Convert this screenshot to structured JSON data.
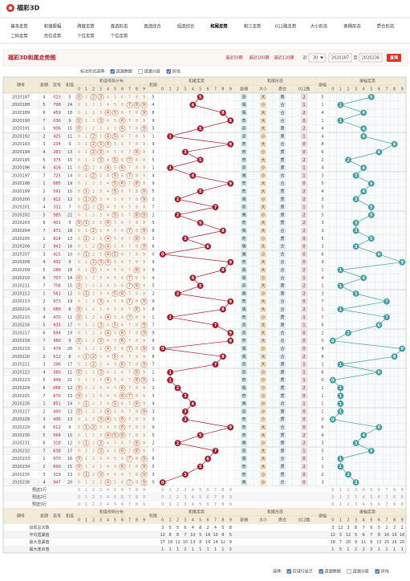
{
  "logo": "福彩3D",
  "nav": {
    "active": 6,
    "row1": [
      "基本走势",
      "和值振幅",
      "跨度走势",
      "直选形态",
      "直选综合",
      "组选综合",
      "和尾走势",
      "和三走势",
      "012路走势",
      "大小形态",
      "奇偶形态",
      "质合形态"
    ],
    "row2": [
      "二码走势",
      "百位走势",
      "十位走势",
      "个位走势"
    ]
  },
  "title_bar": {
    "title": "福彩3D和尾走势图",
    "recent": [
      "最近50期",
      "最近100期",
      "最近120期"
    ],
    "near": "近",
    "select": "30",
    "from": "2020187",
    "to_label": "至",
    "to": "2020236",
    "query": "查询"
  },
  "toolbar": {
    "label": "标注形式选择:",
    "options": [
      {
        "label": "遗漏数据",
        "checked": true
      },
      {
        "label": "遗漏分层",
        "checked": false
      },
      {
        "label": "折线",
        "checked": true
      }
    ]
  },
  "table": {
    "headers": {
      "issue": "期号",
      "week": "星期",
      "draw": "奖号",
      "sum": "和值",
      "dist": "和值号码分布",
      "tail": "和尾",
      "tail_trend": "和尾走势",
      "form": "和尾形态",
      "oe": "奇偶",
      "bs": "大小",
      "pc": "质合",
      "r": "012路",
      "amp": "振幅",
      "amp_trend": "振幅走势"
    },
    "digits": [
      0,
      1,
      2,
      3,
      4,
      5,
      6,
      7,
      8,
      9
    ],
    "rows": [
      [
        "2020187",
        4,
        "023",
        5,
        5,
        "奇",
        "大",
        "质",
        2,
        5
      ],
      [
        "2020188",
        5,
        "798",
        24,
        4,
        "偶",
        "小",
        "合",
        1,
        1
      ],
      [
        "2020189",
        6,
        "459",
        18,
        8,
        "偶",
        "大",
        "合",
        2,
        4
      ],
      [
        "2020190",
        7,
        "036",
        9,
        9,
        "奇",
        "大",
        "合",
        0,
        1
      ],
      [
        "2020191",
        1,
        "906",
        15,
        5,
        "奇",
        "大",
        "质",
        2,
        4
      ],
      [
        "2020192",
        2,
        "425",
        11,
        1,
        "奇",
        "小",
        "质",
        1,
        4
      ],
      [
        "2020193",
        3,
        "234",
        9,
        9,
        "奇",
        "大",
        "合",
        0,
        8
      ],
      [
        "2020194",
        4,
        "283",
        13,
        3,
        "奇",
        "小",
        "质",
        0,
        6
      ],
      [
        "2020195",
        5,
        "375",
        15,
        5,
        "奇",
        "大",
        "质",
        2,
        2
      ],
      [
        "2020196",
        6,
        "416",
        11,
        1,
        "奇",
        "小",
        "质",
        1,
        4
      ],
      [
        "2020197",
        7,
        "725",
        14,
        4,
        "偶",
        "小",
        "合",
        1,
        3
      ],
      [
        "2020198",
        1,
        "685",
        19,
        9,
        "奇",
        "大",
        "合",
        0,
        5
      ],
      [
        "2020199",
        2,
        "591",
        15,
        5,
        "奇",
        "大",
        "质",
        2,
        4
      ],
      [
        "2020200",
        3,
        "912",
        12,
        2,
        "偶",
        "小",
        "质",
        2,
        3
      ],
      [
        "2020201",
        4,
        "331",
        7,
        7,
        "奇",
        "大",
        "质",
        1,
        5
      ],
      [
        "2020202",
        5,
        "985",
        22,
        2,
        "偶",
        "小",
        "质",
        2,
        5
      ],
      [
        "2020203",
        6,
        "401",
        5,
        5,
        "奇",
        "大",
        "质",
        2,
        3
      ],
      [
        "2020204",
        7,
        "972",
        18,
        8,
        "偶",
        "大",
        "合",
        2,
        3
      ],
      [
        "2020205",
        1,
        "814",
        13,
        3,
        "奇",
        "小",
        "质",
        0,
        5
      ],
      [
        "2020206",
        2,
        "943",
        16,
        6,
        "偶",
        "大",
        "合",
        0,
        3
      ],
      [
        "2020207",
        3,
        "415",
        10,
        0,
        "偶",
        "小",
        "合",
        0,
        6
      ],
      [
        "2020208",
        4,
        "432",
        9,
        9,
        "奇",
        "大",
        "合",
        0,
        9
      ],
      [
        "2020209",
        5,
        "288",
        18,
        8,
        "偶",
        "大",
        "合",
        2,
        1
      ],
      [
        "2020210",
        6,
        "707",
        14,
        4,
        "偶",
        "小",
        "合",
        1,
        4
      ],
      [
        "2020211",
        7,
        "708",
        15,
        5,
        "奇",
        "大",
        "质",
        2,
        1
      ],
      [
        "2020212",
        1,
        "561",
        12,
        2,
        "偶",
        "小",
        "质",
        2,
        3
      ],
      [
        "2020213",
        2,
        "973",
        19,
        9,
        "奇",
        "大",
        "合",
        0,
        7
      ],
      [
        "2020214",
        3,
        "080",
        8,
        8,
        "偶",
        "大",
        "合",
        2,
        1
      ],
      [
        "2020215",
        4,
        "470",
        11,
        1,
        "奇",
        "小",
        "质",
        1,
        7
      ],
      [
        "2020216",
        5,
        "935",
        17,
        7,
        "奇",
        "大",
        "质",
        1,
        6
      ],
      [
        "2020217",
        6,
        "694",
        19,
        9,
        "奇",
        "大",
        "合",
        0,
        2
      ],
      [
        "2020218",
        7,
        "360",
        9,
        9,
        "奇",
        "大",
        "合",
        0,
        0
      ],
      [
        "2020219",
        1,
        "479",
        20,
        0,
        "偶",
        "小",
        "合",
        0,
        9
      ],
      [
        "2020220",
        2,
        "512",
        8,
        8,
        "偶",
        "大",
        "合",
        2,
        8
      ],
      [
        "2020221",
        3,
        "296",
        17,
        7,
        "奇",
        "大",
        "质",
        1,
        1
      ],
      [
        "2020222",
        4,
        "380",
        11,
        1,
        "奇",
        "小",
        "质",
        1,
        6
      ],
      [
        "2020223",
        5,
        "948",
        21,
        1,
        "奇",
        "小",
        "质",
        1,
        0
      ],
      [
        "2020224",
        6,
        "066",
        12,
        2,
        "偶",
        "小",
        "质",
        2,
        1
      ],
      [
        "2020225",
        7,
        "670",
        13,
        3,
        "奇",
        "小",
        "质",
        0,
        1
      ],
      [
        "2020226",
        1,
        "851",
        14,
        4,
        "偶",
        "小",
        "合",
        1,
        1
      ],
      [
        "2020227",
        2,
        "490",
        13,
        3,
        "奇",
        "小",
        "质",
        0,
        1
      ],
      [
        "2020228",
        3,
        "436",
        13,
        3,
        "奇",
        "小",
        "质",
        0,
        0
      ],
      [
        "2020229",
        4,
        "612",
        9,
        9,
        "奇",
        "大",
        "合",
        0,
        6
      ],
      [
        "2020230",
        5,
        "564",
        15,
        5,
        "奇",
        "大",
        "质",
        2,
        4
      ],
      [
        "2020231",
        6,
        "318",
        12,
        2,
        "偶",
        "小",
        "质",
        2,
        3
      ],
      [
        "2020232",
        7,
        "638",
        17,
        7,
        "奇",
        "大",
        "质",
        1,
        5
      ],
      [
        "2020233",
        1,
        "970",
        16,
        6,
        "偶",
        "大",
        "合",
        0,
        1
      ],
      [
        "2020234",
        2,
        "690",
        15,
        5,
        "奇",
        "大",
        "质",
        2,
        1
      ],
      [
        "2020235",
        3,
        "319",
        13,
        3,
        "奇",
        "小",
        "质",
        0,
        2
      ],
      [
        "2020236",
        4,
        "947",
        20,
        0,
        "偶",
        "小",
        "合",
        0,
        3
      ]
    ],
    "preselect": [
      "预选1行",
      "预选2行",
      "预选3行"
    ],
    "stats": {
      "labels": [
        "出现总次数",
        "平均遗漏值",
        "最大遗漏值",
        "最大连出值"
      ],
      "tail": [
        [
          3,
          5,
          5,
          6,
          4,
          8,
          2,
          4,
          5,
          8
        ],
        [
          12,
          8,
          8,
          7,
          10,
          5,
          16,
          10,
          8,
          5
        ],
        [
          17,
          18,
          12,
          10,
          13,
          8,
          19,
          14,
          12,
          9
        ],
        [
          1,
          1,
          1,
          2,
          1,
          1,
          1,
          1,
          1,
          2
        ]
      ],
      "amp": [
        [
          3,
          12,
          3,
          8,
          7,
          6,
          5,
          2,
          2,
          2
        ],
        [
          12,
          3,
          12,
          5,
          6,
          7,
          8,
          16,
          16,
          16
        ],
        [
          18,
          7,
          20,
          9,
          11,
          9,
          13,
          25,
          26,
          20
        ],
        [
          1,
          5,
          1,
          2,
          2,
          2,
          1,
          1,
          1,
          1
        ]
      ]
    }
  },
  "bottom": {
    "label": "选择:",
    "options": [
      {
        "label": "区域行显示",
        "checked": true
      },
      {
        "label": "遗漏数据",
        "checked": true
      },
      {
        "label": "遗漏分层",
        "checked": false
      },
      {
        "label": "折线",
        "checked": true
      }
    ]
  }
}
